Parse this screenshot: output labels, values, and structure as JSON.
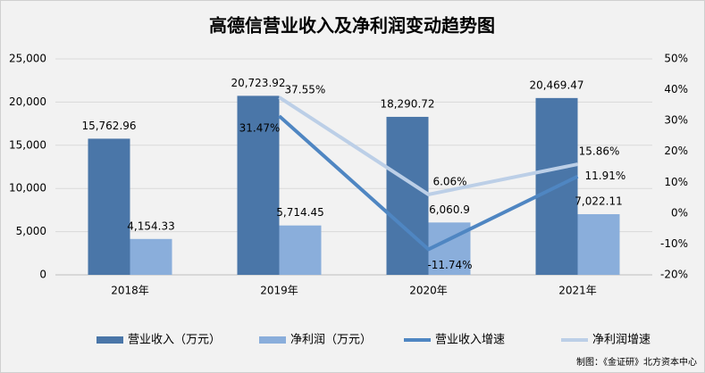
{
  "chart_data": {
    "type": "bar",
    "title": "高德信营业收入及净利润变动趋势图",
    "categories": [
      "2018年",
      "2019年",
      "2020年",
      "2021年"
    ],
    "series": [
      {
        "name": "营业收入（万元）",
        "color": "#4a76a8",
        "values": [
          15762.96,
          20723.92,
          18290.72,
          20469.47
        ],
        "value_labels": [
          "15,762.96",
          "20,723.92",
          "18,290.72",
          "20,469.47"
        ]
      },
      {
        "name": "净利润（万元）",
        "color": "#8aaedb",
        "values": [
          4154.33,
          5714.45,
          6060.9,
          7022.11
        ],
        "value_labels": [
          "4,154.33",
          "5,714.45",
          "6,060.9",
          "7,022.11"
        ]
      },
      {
        "name": "营业收入增速",
        "type": "line",
        "axis": "y2",
        "color": "#4f86c2",
        "values": [
          null,
          31.47,
          -11.74,
          11.91
        ],
        "value_labels": [
          null,
          "31.47%",
          "-11.74%",
          "11.91%"
        ]
      },
      {
        "name": "净利润增速",
        "type": "line",
        "axis": "y2",
        "color": "#bccfe7",
        "values": [
          null,
          37.55,
          6.06,
          15.86
        ],
        "value_labels": [
          null,
          "37.55%",
          "6.06%",
          "15.86%"
        ]
      }
    ],
    "ylim": [
      0,
      25000
    ],
    "yticks": [
      0,
      {
        "value": 5000,
        "label": "5,000"
      },
      {
        "value": 10000,
        "label": "10,000"
      },
      {
        "value": 15000,
        "label": "15,000"
      },
      {
        "value": 20000,
        "label": "20,000"
      },
      {
        "value": 25000,
        "label": "25,000"
      }
    ],
    "y2lim": [
      -20,
      50
    ],
    "y2ticks": [
      {
        "value": -20,
        "label": "-20%"
      },
      {
        "value": -10,
        "label": "-10%"
      },
      {
        "value": 0,
        "label": "0%"
      },
      {
        "value": 10,
        "label": "10%"
      },
      {
        "value": 20,
        "label": "20%"
      },
      {
        "value": 30,
        "label": "30%"
      },
      {
        "value": 40,
        "label": "40%"
      },
      {
        "value": 50,
        "label": "50%"
      }
    ],
    "legend": "bottom",
    "footnote": "制图：《金证研》北方资本中心"
  }
}
